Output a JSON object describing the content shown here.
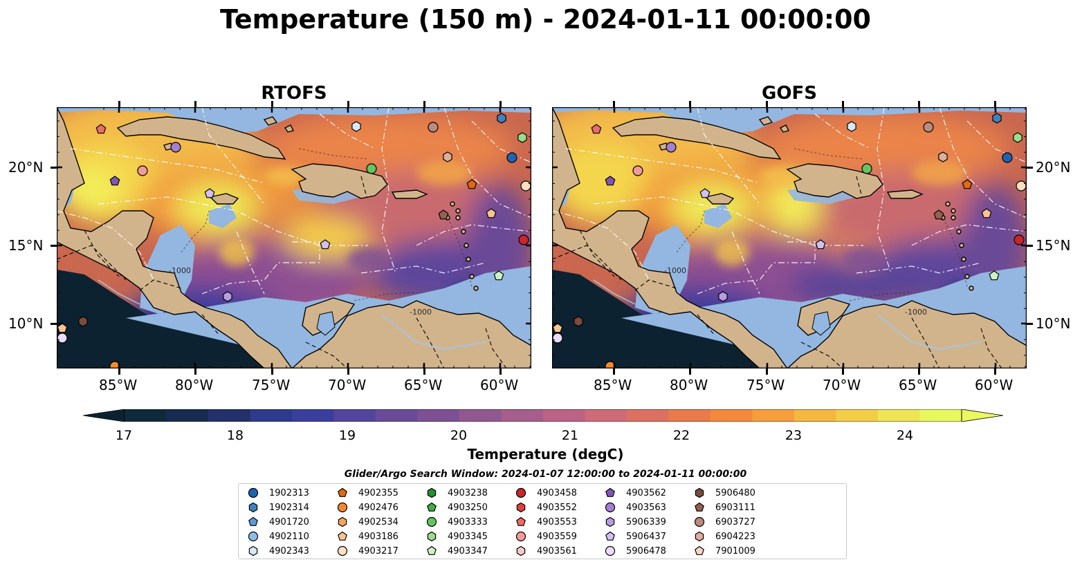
{
  "title": "Temperature (150 m) - 2024-01-11 00:00:00",
  "panels": [
    {
      "name": "RTOFS"
    },
    {
      "name": "GOFS"
    }
  ],
  "lat_labels": [
    "20°N",
    "15°N",
    "10°N"
  ],
  "lon_labels": [
    "85°W",
    "80°W",
    "75°W",
    "70°W",
    "65°W",
    "60°W"
  ],
  "colorbar": {
    "label": "Temperature (degC)",
    "ticks": [
      "17",
      "18",
      "19",
      "20",
      "21",
      "22",
      "23",
      "24"
    ],
    "colors": [
      "#0f2a3c",
      "#182a4f",
      "#23306c",
      "#2e3a8c",
      "#3a3f9e",
      "#53459d",
      "#6a4b9a",
      "#7d5093",
      "#915890",
      "#a65e8c",
      "#bb6285",
      "#cf6a78",
      "#dc7161",
      "#ea7a4a",
      "#f4893d",
      "#f69e3c",
      "#f5b73f",
      "#f2cd48",
      "#ede456",
      "#e9f760"
    ],
    "over": "#ebf85e",
    "under": "#0c2231"
  },
  "search_window": "Glider/Argo Search Window: 2024-01-07 12:00:00 to 2024-01-11 00:00:00",
  "legend": [
    {
      "id": "1902313",
      "marker": "circle",
      "color": "#1f64b0"
    },
    {
      "id": "1902314",
      "marker": "hexagon",
      "color": "#3c83c0"
    },
    {
      "id": "4901720",
      "marker": "pentagon",
      "color": "#5b9bd5"
    },
    {
      "id": "4902110",
      "marker": "circle",
      "color": "#8bbde8"
    },
    {
      "id": "4902343",
      "marker": "hexagon",
      "color": "#d6e9fb"
    },
    {
      "id": "4902355",
      "marker": "pentagon",
      "color": "#e06a0e"
    },
    {
      "id": "4902476",
      "marker": "circle",
      "color": "#f5892c"
    },
    {
      "id": "4902534",
      "marker": "hexagon",
      "color": "#f7a35d"
    },
    {
      "id": "4903186",
      "marker": "pentagon",
      "color": "#f9c48f"
    },
    {
      "id": "4903217",
      "marker": "circle",
      "color": "#fde0c0"
    },
    {
      "id": "4903238",
      "marker": "hexagon",
      "color": "#22912e"
    },
    {
      "id": "4903250",
      "marker": "pentagon",
      "color": "#41ad43"
    },
    {
      "id": "4903333",
      "marker": "circle",
      "color": "#64c45f"
    },
    {
      "id": "4903345",
      "marker": "hexagon",
      "color": "#98dc8c"
    },
    {
      "id": "4903347",
      "marker": "pentagon",
      "color": "#cdf1c5"
    },
    {
      "id": "4903458",
      "marker": "circle",
      "color": "#c8262a"
    },
    {
      "id": "4903552",
      "marker": "hexagon",
      "color": "#de4040"
    },
    {
      "id": "4903553",
      "marker": "pentagon",
      "color": "#ec6b6b"
    },
    {
      "id": "4903559",
      "marker": "circle",
      "color": "#f29a9a"
    },
    {
      "id": "4903561",
      "marker": "hexagon",
      "color": "#f9c6c6"
    },
    {
      "id": "4903562",
      "marker": "pentagon",
      "color": "#7f56b6"
    },
    {
      "id": "4903563",
      "marker": "circle",
      "color": "#a37fd0"
    },
    {
      "id": "5906339",
      "marker": "hexagon",
      "color": "#b99be0"
    },
    {
      "id": "5906437",
      "marker": "pentagon",
      "color": "#d3bff0"
    },
    {
      "id": "5906478",
      "marker": "circle",
      "color": "#ecdcfb"
    },
    {
      "id": "5906480",
      "marker": "hexagon",
      "color": "#7a4b3e"
    },
    {
      "id": "6903111",
      "marker": "pentagon",
      "color": "#936052"
    },
    {
      "id": "6903727",
      "marker": "circle",
      "color": "#bc8a7e"
    },
    {
      "id": "6904223",
      "marker": "hexagon",
      "color": "#dcae9f"
    },
    {
      "id": "7901009",
      "marker": "pentagon",
      "color": "#fcd6c8"
    }
  ],
  "map_values": {
    "contour_label": "-1000",
    "land_color": "#d2b48c",
    "shelf_color": "#93b7e0",
    "pacific_color": "#0c2231"
  }
}
